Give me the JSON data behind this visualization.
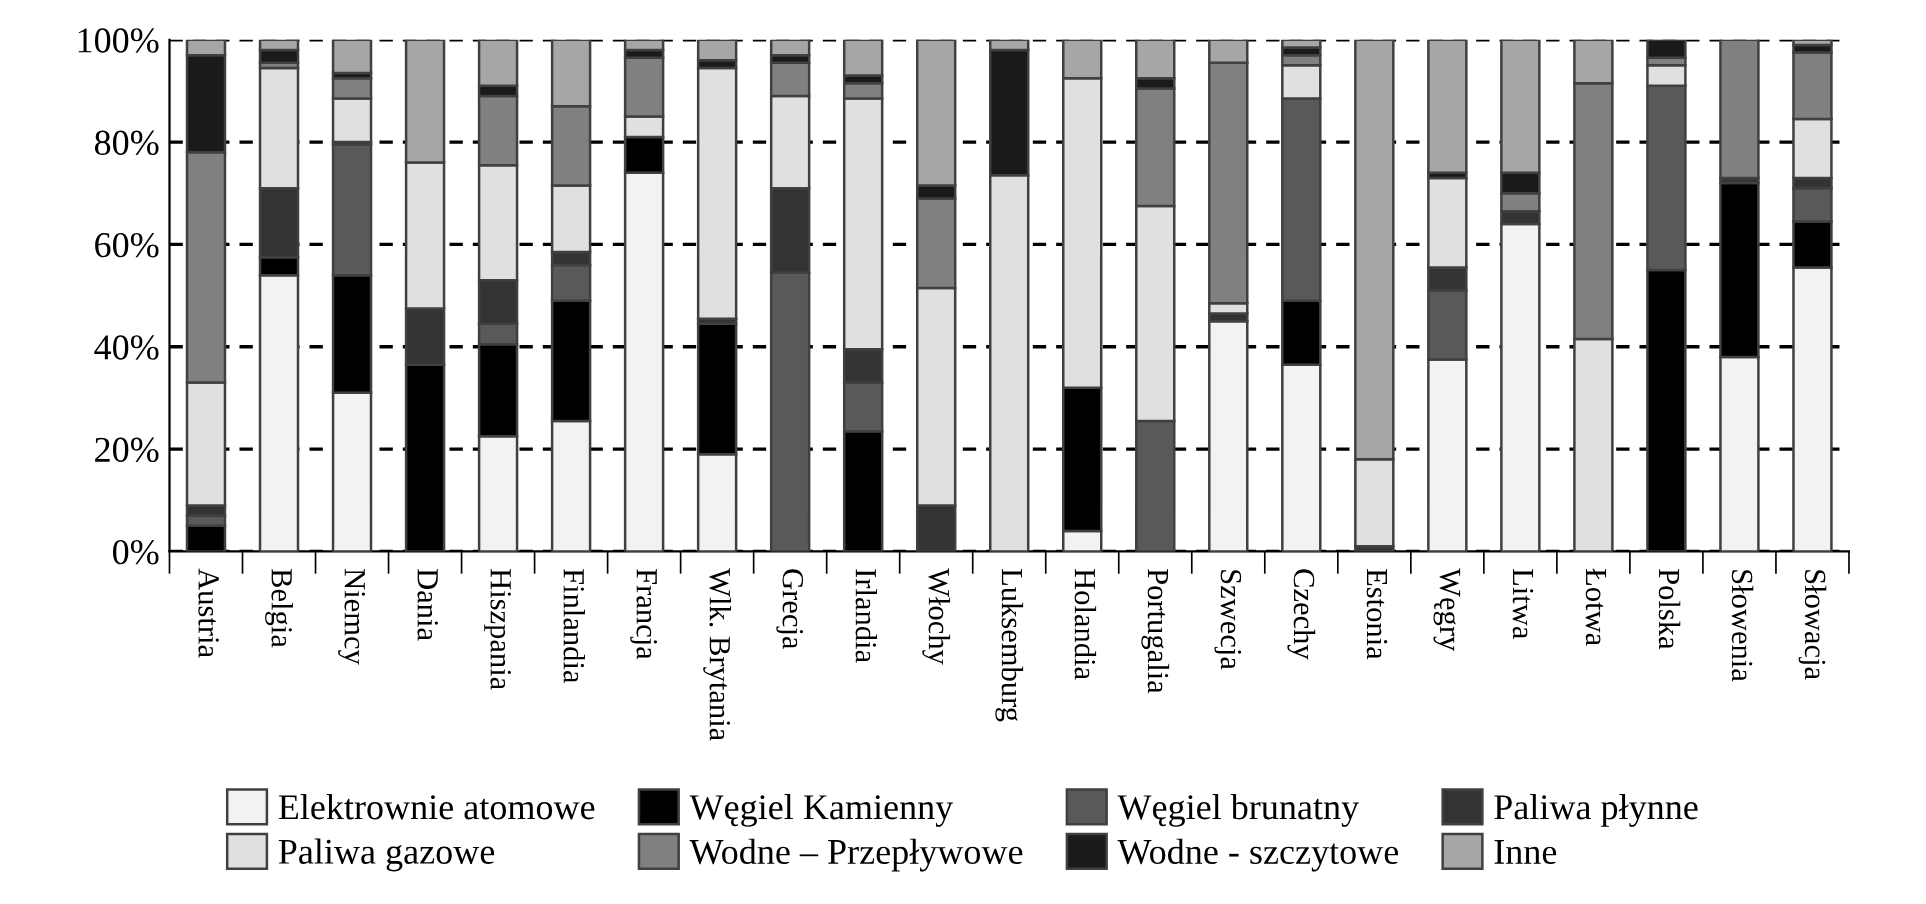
{
  "chart_data": {
    "type": "bar",
    "stacked": true,
    "categories": [
      "Austria",
      "Belgia",
      "Niemcy",
      "Dania",
      "Hiszpania",
      "Finlandia",
      "Francja",
      "Wlk. Brytania",
      "Grecja",
      "Irlandia",
      "Włochy",
      "Luksemburg",
      "Holandia",
      "Portugalia",
      "Szwecja",
      "Czechy",
      "Estonia",
      "Węgry",
      "Litwa",
      "Łotwa",
      "Polska",
      "Słowenia",
      "Słowacja"
    ],
    "series": [
      {
        "name": "Elektrownie atomowe",
        "color": "#f2f2f2",
        "values": [
          0,
          54,
          31,
          0,
          22.5,
          25.5,
          74,
          19,
          0,
          0,
          0,
          0,
          4,
          0,
          45,
          36.5,
          0,
          37.5,
          64,
          0,
          0,
          38,
          55.5
        ]
      },
      {
        "name": "Węgiel Kamienny",
        "color": "#000000",
        "values": [
          5,
          3.5,
          23,
          36.5,
          18,
          23.5,
          7,
          25.5,
          0,
          23.5,
          0,
          0,
          28,
          0,
          0,
          12.5,
          0,
          0,
          0,
          0,
          55,
          34,
          9
        ]
      },
      {
        "name": "Węgiel brunatny",
        "color": "#595959",
        "values": [
          2,
          0,
          25.5,
          0,
          4,
          7,
          0,
          0,
          54.5,
          9.5,
          0,
          0,
          0,
          25.5,
          0,
          39.5,
          0,
          13.5,
          0,
          0,
          36,
          0,
          6.5
        ]
      },
      {
        "name": "Paliwa płynne",
        "color": "#333333",
        "values": [
          2,
          13.5,
          0.5,
          11,
          8.5,
          2.5,
          0,
          1,
          16.5,
          6.5,
          9,
          0,
          0,
          0,
          1.5,
          0,
          1,
          4.5,
          2.5,
          0,
          0,
          1,
          2
        ]
      },
      {
        "name": "Paliwa gazowe",
        "color": "#e0e0e0",
        "values": [
          24,
          23.5,
          8.5,
          28.5,
          22.5,
          13,
          4,
          49,
          18,
          49,
          42.5,
          73.5,
          60.5,
          42,
          2,
          6.5,
          17,
          17.5,
          0,
          41.5,
          4,
          0,
          11.5
        ]
      },
      {
        "name": "Wodne – Przepływowe",
        "color": "#808080",
        "values": [
          45,
          1,
          4,
          0,
          13.5,
          15.5,
          11.5,
          0,
          6.5,
          3,
          17.5,
          0,
          0,
          23,
          47,
          2,
          0,
          0,
          3.5,
          50,
          1.5,
          27,
          13
        ]
      },
      {
        "name": "Wodne - szczytowe",
        "color": "#1a1a1a",
        "values": [
          19,
          2.5,
          1,
          0,
          2,
          0,
          1.5,
          1.5,
          1.5,
          1.5,
          2.5,
          24.5,
          0,
          2,
          0,
          1.5,
          0,
          1,
          4,
          0,
          3.5,
          0,
          1.5
        ]
      },
      {
        "name": "Inne",
        "color": "#a6a6a6",
        "values": [
          3,
          2,
          6.5,
          24,
          9,
          13,
          2,
          4,
          3,
          7,
          28.5,
          2,
          7.5,
          7.5,
          4.5,
          1.5,
          82,
          26,
          26,
          8.5,
          0,
          0,
          1
        ]
      }
    ],
    "ylim": [
      0,
      100
    ],
    "yticks": [
      {
        "value": 0,
        "label": "0%"
      },
      {
        "value": 20,
        "label": "20%"
      },
      {
        "value": 40,
        "label": "40%"
      },
      {
        "value": 60,
        "label": "60%"
      },
      {
        "value": 80,
        "label": "80%"
      },
      {
        "value": 100,
        "label": "100%"
      }
    ],
    "grid": "y",
    "legend": "bottom"
  }
}
